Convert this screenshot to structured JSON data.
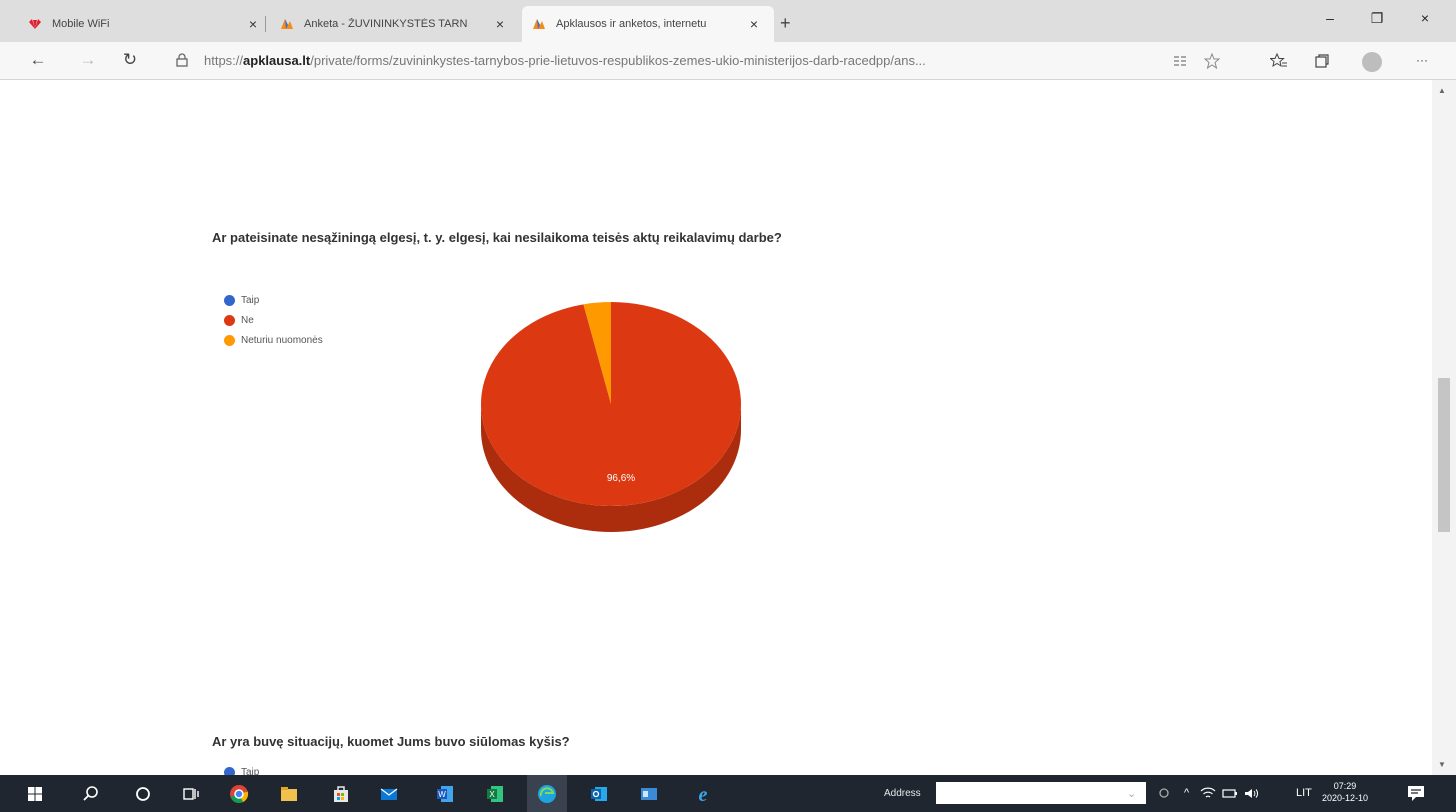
{
  "browser": {
    "tabs": [
      {
        "title": "Mobile WiFi",
        "active": false
      },
      {
        "title": "Anketa - ŽUVININKYSTĖS TARN",
        "active": false
      },
      {
        "title": "Apklausos ir anketos, internetu",
        "active": true
      }
    ],
    "close_glyph": "×",
    "new_tab_glyph": "+",
    "window_controls": [
      "–",
      "❐",
      "×"
    ],
    "url_prefix": "https://",
    "url_domain": "apklausa.lt",
    "url_path": "/private/forms/zuvininkystes-tarnybos-prie-lietuvos-respublikos-zemes-ukio-ministerijos-darb-racedpp/ans...",
    "nav": {
      "back": "←",
      "forward": "→",
      "refresh": "↻",
      "more": "···"
    }
  },
  "survey": {
    "question1": "Ar pateisinate nesąžiningą elgesį, t. y. elgesį, kai nesilaikoma teisės aktų reikalavimų darbe?",
    "question2": "Ar yra buvę situacijų, kuomet Jums buvo siūlomas kyšis?",
    "question2_first_option": "Taip"
  },
  "chart_data": {
    "type": "pie",
    "style": "3d",
    "legend_position": "top-left",
    "labels": [
      "Taip",
      "Ne",
      "Neturiu nuomonės"
    ],
    "values": [
      0,
      96.6,
      3.4
    ],
    "colors": [
      "#3366cc",
      "#dc3912",
      "#ff9900"
    ],
    "data_labels": [
      "",
      "96,6%",
      ""
    ]
  },
  "taskbar": {
    "address_label": "Address",
    "language": "LIT",
    "time": "07:29",
    "date": "2020-12-10"
  }
}
